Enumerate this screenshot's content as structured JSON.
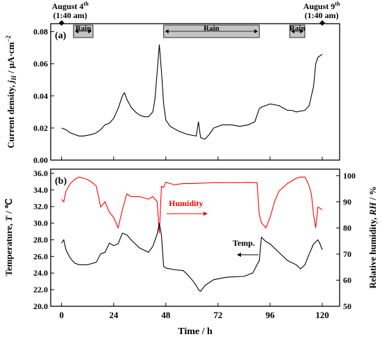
{
  "top_labels": {
    "left": {
      "line1": "August 4",
      "sup": "th",
      "line2": "(1:40 am)"
    },
    "right": {
      "line1": "August 9",
      "sup": "th",
      "line2": "(1:40 am)"
    }
  },
  "rain_periods": [
    {
      "label": "Rain",
      "start": 5.5,
      "end": 14.5
    },
    {
      "label": "Rain",
      "start": 47,
      "end": 91
    },
    {
      "label": "Rain",
      "start": 105,
      "end": 112
    }
  ],
  "x_axis": {
    "label": "Time / h",
    "ticks": [
      0,
      24,
      48,
      72,
      96,
      120
    ],
    "range": [
      -5,
      128
    ]
  },
  "panel_a": {
    "tag": "(a)",
    "y_label": "Current density, jH / μA·cm⁻²",
    "y_label_parts": {
      "pre": "Current density, ",
      "j": "j",
      "sub": "H",
      "post": " / μA·cm",
      "sup": "−2"
    },
    "y_range": [
      0,
      0.085
    ],
    "y_ticks": [
      "0.00",
      "0.02",
      "0.04",
      "0.06",
      "0.08"
    ]
  },
  "panel_b": {
    "tag": "(b)",
    "y_left_label_parts": {
      "pre": "Temperature, ",
      "T": "T",
      "post": " / ℃"
    },
    "y_left_range": [
      20,
      36.5
    ],
    "y_left_ticks": [
      "20.0",
      "22.0",
      "24.0",
      "26.0",
      "28.0",
      "30.0",
      "32.0",
      "34.0",
      "36.0"
    ],
    "y_right_label_parts": {
      "pre": "Relative humidity, ",
      "RH": "RH",
      "post": " / %"
    },
    "y_right_range": [
      50,
      102.5
    ],
    "y_right_ticks": [
      "50",
      "60",
      "70",
      "80",
      "90",
      "100"
    ],
    "humidity_annotation": "Humidity",
    "temp_annotation": "Temp."
  },
  "colors": {
    "current": "#000000",
    "temperature": "#000000",
    "humidity": "#ff0000",
    "rain_bar": "#c4c4c4"
  },
  "chart_data": [
    {
      "type": "line",
      "title": "(a)",
      "xlabel": "Time / h",
      "ylabel": "Current density, jH / μA·cm⁻²",
      "ylim": [
        0,
        0.085
      ],
      "series": [
        {
          "x": [
            0,
            2,
            4,
            6,
            8,
            10,
            12,
            14,
            16,
            18,
            20,
            22,
            24,
            26,
            28,
            29,
            30,
            32,
            34,
            36,
            38,
            40,
            42,
            43,
            44,
            45,
            46,
            47,
            48,
            50,
            54,
            58,
            62,
            63,
            64,
            66,
            68,
            70,
            74,
            78,
            82,
            86,
            89,
            90,
            91,
            92,
            96,
            100,
            104,
            106,
            108,
            112,
            114,
            116,
            117,
            118,
            120
          ],
          "values": [
            0.02,
            0.019,
            0.017,
            0.016,
            0.015,
            0.015,
            0.0155,
            0.016,
            0.017,
            0.019,
            0.022,
            0.023,
            0.026,
            0.032,
            0.04,
            0.042,
            0.038,
            0.033,
            0.03,
            0.028,
            0.027,
            0.027,
            0.03,
            0.038,
            0.055,
            0.072,
            0.055,
            0.035,
            0.025,
            0.021,
            0.018,
            0.016,
            0.015,
            0.024,
            0.014,
            0.013,
            0.016,
            0.02,
            0.022,
            0.022,
            0.021,
            0.022,
            0.024,
            0.028,
            0.032,
            0.033,
            0.035,
            0.034,
            0.031,
            0.031,
            0.03,
            0.031,
            0.034,
            0.046,
            0.06,
            0.064,
            0.066
          ]
        }
      ]
    },
    {
      "type": "line",
      "title": "(b)",
      "xlabel": "Time / h",
      "ylabel_left": "Temperature, T / ℃",
      "ylabel_right": "Relative humidity, RH / %",
      "ylim_left": [
        20,
        36.5
      ],
      "ylim_right": [
        50,
        102.5
      ],
      "series": [
        {
          "name": "Temp.",
          "axis": "left",
          "x": [
            0,
            1,
            2,
            4,
            6,
            8,
            12,
            16,
            18,
            20,
            22,
            24,
            26,
            28,
            30,
            32,
            36,
            40,
            42,
            44,
            45,
            46,
            47,
            48,
            52,
            56,
            58,
            60,
            62,
            63,
            64,
            66,
            70,
            76,
            84,
            88,
            90,
            91,
            92,
            94,
            96,
            100,
            104,
            108,
            110,
            112,
            114,
            116,
            118,
            119,
            120
          ],
          "values": [
            27.6,
            28.0,
            26.8,
            25.8,
            25.2,
            25.0,
            25.0,
            25.3,
            26.3,
            26.5,
            27.6,
            27.3,
            27.5,
            28.8,
            28.6,
            28.0,
            27.0,
            26.5,
            27.2,
            28.7,
            30.0,
            28.5,
            24.8,
            24.6,
            24.4,
            24.3,
            23.8,
            23.2,
            22.5,
            22.0,
            21.8,
            22.5,
            23.2,
            23.5,
            23.6,
            24.0,
            25.0,
            25.5,
            28.3,
            27.8,
            27.5,
            26.5,
            25.5,
            25.0,
            24.5,
            25.0,
            26.3,
            27.5,
            28.0,
            27.5,
            26.8
          ]
        },
        {
          "name": "Humidity",
          "axis": "right",
          "x": [
            0,
            1,
            2,
            4,
            6,
            8,
            10,
            12,
            14,
            16,
            18,
            20,
            22,
            24,
            26,
            28,
            30,
            32,
            36,
            40,
            42,
            44,
            45,
            46,
            47,
            48,
            50,
            52,
            56,
            60,
            70,
            80,
            86,
            90,
            91,
            92,
            94,
            96,
            98,
            100,
            104,
            108,
            110,
            112,
            113,
            114,
            115,
            116,
            117,
            118,
            120
          ],
          "values": [
            91,
            90,
            94,
            97,
            98.5,
            99.5,
            99,
            98.5,
            97.5,
            96,
            88,
            90,
            86,
            84,
            80,
            87,
            93,
            92,
            92,
            91,
            92,
            90,
            78,
            96,
            95.5,
            97.5,
            97,
            96.5,
            97,
            97,
            97.3,
            97.3,
            97.4,
            97.3,
            85,
            82,
            80,
            84,
            90,
            94,
            97,
            99,
            99.5,
            99.5,
            98,
            96,
            93,
            85,
            80,
            88,
            87
          ]
        }
      ]
    }
  ]
}
